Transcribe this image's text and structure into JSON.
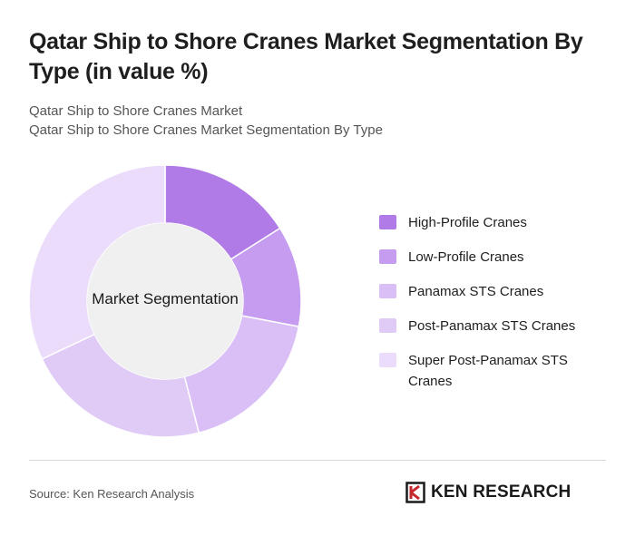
{
  "header": {
    "title": "Qatar Ship to Shore Cranes Market Segmentation By Type (in value %)",
    "subtitle_1": "Qatar Ship to Shore Cranes Market",
    "subtitle_2": "Qatar Ship to Shore Cranes Market Segmentation By Type"
  },
  "chart_data": {
    "type": "pie",
    "center_label": "Market Segmentation",
    "categories": [
      "High-Profile Cranes",
      "Low-Profile Cranes",
      "Panamax STS Cranes",
      "Post-Panamax STS Cranes",
      "Super Post-Panamax STS Cranes"
    ],
    "values": [
      16,
      12,
      18,
      22,
      32
    ],
    "colors": [
      "#b07be6",
      "#c59cef",
      "#d9bff5",
      "#e0cbf7",
      "#eadcfa"
    ],
    "legend_position": "right"
  },
  "footer": {
    "source": "Source: Ken Research Analysis",
    "brand": "KEN RESEARCH",
    "brand_logo_icon": "ken-research-logo-icon"
  }
}
